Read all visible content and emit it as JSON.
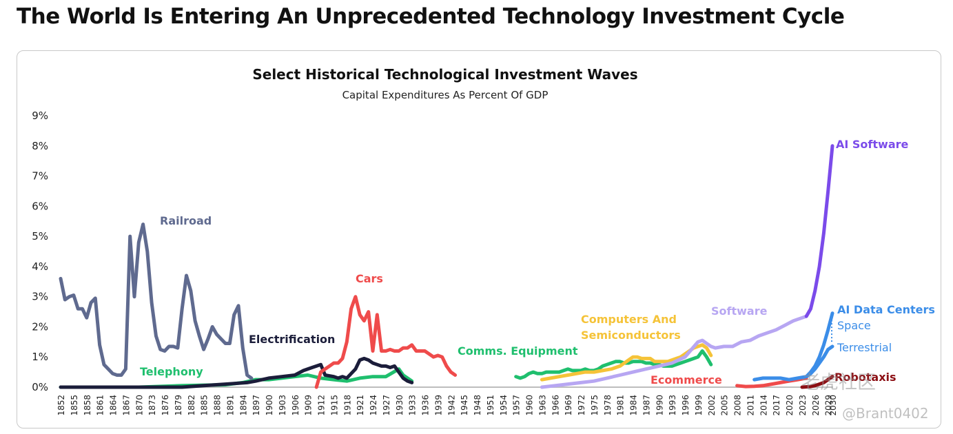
{
  "page": {
    "title": "The World Is Entering An Unprecedented Technology Investment Cycle",
    "watermark": "老虎社区",
    "handle": "@Brant0402"
  },
  "chart_data": {
    "type": "line",
    "title": "Select Historical Technological Investment Waves",
    "subtitle": "Capital Expenditures As Percent Of GDP",
    "xlabel": "",
    "ylabel": "",
    "xlim": [
      1852,
      2030
    ],
    "ylim": [
      0,
      9
    ],
    "yticks": [
      "0%",
      "1%",
      "2%",
      "3%",
      "4%",
      "5%",
      "6%",
      "7%",
      "8%",
      "9%"
    ],
    "xticks": [
      "1852",
      "1855",
      "1858",
      "1861",
      "1864",
      "1867",
      "1870",
      "1873",
      "1876",
      "1879",
      "1882",
      "1885",
      "1888",
      "1891",
      "1894",
      "1897",
      "1900",
      "1903",
      "1906",
      "1909",
      "1912",
      "1915",
      "1918",
      "1921",
      "1924",
      "1927",
      "1930",
      "1933",
      "1936",
      "1939",
      "1942",
      "1945",
      "1948",
      "1951",
      "1954",
      "1957",
      "1960",
      "1963",
      "1966",
      "1969",
      "1972",
      "1975",
      "1978",
      "1981",
      "1984",
      "1987",
      "1990",
      "1993",
      "1996",
      "1999",
      "2002",
      "2005",
      "2008",
      "2011",
      "2014",
      "2017",
      "2020",
      "2023",
      "2026",
      "2029",
      "2030"
    ],
    "series": [
      {
        "name": "Baseline",
        "color": "#bdbdbd",
        "x": [
          1852,
          2030
        ],
        "y": [
          0,
          0
        ]
      },
      {
        "name": "Telephony",
        "label": "Telephony",
        "color": "#1fbf6e",
        "x": [
          1852,
          1870,
          1880,
          1890,
          1894,
          1897,
          1900,
          1903,
          1906,
          1909,
          1912,
          1915,
          1918,
          1921,
          1924,
          1927,
          1930,
          1931,
          1933
        ],
        "y": [
          0,
          0,
          0.05,
          0.08,
          0.15,
          0.25,
          0.25,
          0.3,
          0.35,
          0.4,
          0.3,
          0.25,
          0.2,
          0.3,
          0.35,
          0.35,
          0.6,
          0.4,
          0.2
        ]
      },
      {
        "name": "Railroad",
        "label": "Railroad",
        "color": "#5f6a8f",
        "x": [
          1852,
          1853,
          1854,
          1855,
          1856,
          1857,
          1858,
          1859,
          1860,
          1861,
          1862,
          1863,
          1864,
          1865,
          1866,
          1867,
          1868,
          1869,
          1870,
          1871,
          1872,
          1873,
          1874,
          1875,
          1876,
          1877,
          1878,
          1879,
          1880,
          1881,
          1882,
          1883,
          1884,
          1885,
          1886,
          1887,
          1888,
          1889,
          1890,
          1891,
          1892,
          1893,
          1894,
          1895,
          1896
        ],
        "y": [
          3.6,
          2.9,
          3.0,
          3.05,
          2.6,
          2.6,
          2.3,
          2.8,
          2.95,
          1.4,
          0.75,
          0.6,
          0.45,
          0.4,
          0.4,
          0.6,
          5.0,
          3.0,
          4.8,
          5.4,
          4.5,
          2.8,
          1.7,
          1.25,
          1.2,
          1.35,
          1.35,
          1.3,
          2.6,
          3.7,
          3.2,
          2.2,
          1.7,
          1.25,
          1.6,
          2.0,
          1.75,
          1.6,
          1.45,
          1.45,
          2.4,
          2.7,
          1.3,
          0.4,
          0.3
        ]
      },
      {
        "name": "Electrification",
        "label": "Electrification",
        "color": "#1b1d3a",
        "x": [
          1852,
          1880,
          1885,
          1890,
          1895,
          1897,
          1900,
          1903,
          1906,
          1908,
          1910,
          1911,
          1912,
          1913,
          1915,
          1916,
          1917,
          1918,
          1919,
          1920,
          1921,
          1922,
          1923,
          1924,
          1925,
          1926,
          1927,
          1928,
          1929,
          1930,
          1931,
          1932,
          1933
        ],
        "y": [
          0,
          0,
          0.05,
          0.1,
          0.15,
          0.2,
          0.3,
          0.35,
          0.4,
          0.55,
          0.65,
          0.7,
          0.75,
          0.4,
          0.35,
          0.3,
          0.35,
          0.3,
          0.45,
          0.6,
          0.9,
          0.95,
          0.9,
          0.8,
          0.75,
          0.7,
          0.7,
          0.65,
          0.7,
          0.5,
          0.3,
          0.2,
          0.15
        ]
      },
      {
        "name": "Cars",
        "label": "Cars",
        "color": "#ef4b4b",
        "x": [
          1911,
          1912,
          1913,
          1914,
          1915,
          1916,
          1917,
          1918,
          1919,
          1920,
          1921,
          1922,
          1923,
          1924,
          1925,
          1926,
          1927,
          1928,
          1929,
          1930,
          1931,
          1932,
          1933,
          1934,
          1935,
          1936,
          1937,
          1938,
          1939,
          1940,
          1941,
          1942,
          1943
        ],
        "y": [
          0,
          0.5,
          0.6,
          0.7,
          0.8,
          0.8,
          0.95,
          1.5,
          2.6,
          3.0,
          2.4,
          2.2,
          2.5,
          1.2,
          2.4,
          1.2,
          1.2,
          1.25,
          1.2,
          1.2,
          1.3,
          1.3,
          1.4,
          1.2,
          1.2,
          1.2,
          1.1,
          1.0,
          1.05,
          1.0,
          0.7,
          0.5,
          0.4
        ]
      },
      {
        "name": "Comms. Equipment",
        "label": "Comms. Equipment",
        "color": "#1fbf6e",
        "x": [
          1957,
          1958,
          1959,
          1960,
          1961,
          1962,
          1963,
          1964,
          1965,
          1966,
          1967,
          1968,
          1969,
          1970,
          1971,
          1972,
          1973,
          1974,
          1975,
          1976,
          1977,
          1978,
          1979,
          1980,
          1981,
          1982,
          1983,
          1984,
          1985,
          1986,
          1987,
          1988,
          1989,
          1990,
          1991,
          1992,
          1993,
          1994,
          1995,
          1996,
          1997,
          1998,
          1999,
          2000,
          2001,
          2002
        ],
        "y": [
          0.35,
          0.3,
          0.35,
          0.45,
          0.5,
          0.45,
          0.45,
          0.5,
          0.5,
          0.5,
          0.5,
          0.55,
          0.6,
          0.55,
          0.55,
          0.55,
          0.6,
          0.55,
          0.55,
          0.6,
          0.7,
          0.75,
          0.8,
          0.85,
          0.85,
          0.8,
          0.8,
          0.85,
          0.85,
          0.85,
          0.8,
          0.8,
          0.75,
          0.75,
          0.7,
          0.7,
          0.7,
          0.75,
          0.8,
          0.85,
          0.9,
          0.95,
          1.0,
          1.2,
          1.0,
          0.75
        ]
      },
      {
        "name": "Computers And Semiconductors",
        "label": "Computers And\nSemiconductors",
        "color": "#f5c338",
        "x": [
          1963,
          1965,
          1967,
          1969,
          1971,
          1973,
          1975,
          1977,
          1979,
          1981,
          1982,
          1983,
          1984,
          1985,
          1986,
          1987,
          1988,
          1989,
          1990,
          1991,
          1992,
          1993,
          1994,
          1995,
          1996,
          1997,
          1998,
          1999,
          2000,
          2001,
          2002
        ],
        "y": [
          0.25,
          0.3,
          0.35,
          0.4,
          0.45,
          0.5,
          0.5,
          0.55,
          0.6,
          0.7,
          0.8,
          0.9,
          1.0,
          1.0,
          0.95,
          0.95,
          0.95,
          0.85,
          0.85,
          0.85,
          0.85,
          0.9,
          0.95,
          1.0,
          1.1,
          1.2,
          1.3,
          1.35,
          1.4,
          1.3,
          1.05
        ]
      },
      {
        "name": "Software",
        "label": "Software",
        "color": "#b7a6f2",
        "x": [
          1963,
          1966,
          1969,
          1972,
          1975,
          1978,
          1981,
          1984,
          1987,
          1990,
          1993,
          1996,
          1999,
          2000,
          2001,
          2002,
          2003,
          2005,
          2007,
          2009,
          2011,
          2013,
          2015,
          2017,
          2019,
          2021,
          2023,
          2024
        ],
        "y": [
          0.0,
          0.05,
          0.1,
          0.15,
          0.2,
          0.3,
          0.4,
          0.5,
          0.6,
          0.7,
          0.8,
          1.0,
          1.5,
          1.55,
          1.45,
          1.35,
          1.3,
          1.35,
          1.35,
          1.5,
          1.55,
          1.7,
          1.8,
          1.9,
          2.05,
          2.2,
          2.3,
          2.35
        ]
      },
      {
        "name": "Ecommerce",
        "label": "Ecommerce",
        "color": "#ef4b4b",
        "x": [
          2008,
          2010,
          2012,
          2014,
          2016,
          2018,
          2020,
          2022,
          2024
        ],
        "y": [
          0.05,
          0.02,
          0.03,
          0.05,
          0.1,
          0.15,
          0.2,
          0.25,
          0.3
        ]
      },
      {
        "name": "AI Data Centers – Terrestrial",
        "label": "AI Data Centers",
        "color": "#3b8de8",
        "x": [
          2012,
          2014,
          2016,
          2018,
          2020,
          2022,
          2024,
          2025,
          2026,
          2027,
          2028,
          2029,
          2030
        ],
        "y": [
          0.25,
          0.3,
          0.3,
          0.3,
          0.25,
          0.3,
          0.35,
          0.45,
          0.6,
          0.8,
          1.0,
          1.25,
          1.35
        ]
      },
      {
        "name": "AI Data Centers – Space",
        "color": "#3b8de8",
        "x": [
          2024,
          2025,
          2026,
          2027,
          2028,
          2029,
          2030
        ],
        "y": [
          0.35,
          0.5,
          0.7,
          1.0,
          1.4,
          1.9,
          2.45
        ]
      },
      {
        "name": "AI Software",
        "label": "AI Software",
        "color": "#7b4bea",
        "x": [
          2024,
          2025,
          2026,
          2027,
          2028,
          2029,
          2030
        ],
        "y": [
          2.35,
          2.6,
          3.2,
          4.0,
          5.1,
          6.5,
          8.0
        ]
      },
      {
        "name": "Robotaxis",
        "label": "Robotaxis",
        "color": "#8c0f14",
        "x": [
          2023,
          2025,
          2026,
          2027,
          2028,
          2029,
          2030
        ],
        "y": [
          0.0,
          0.02,
          0.05,
          0.1,
          0.15,
          0.25,
          0.35
        ]
      }
    ],
    "labels": {
      "space": "Space",
      "terrestrial": "Terrestrial"
    }
  }
}
